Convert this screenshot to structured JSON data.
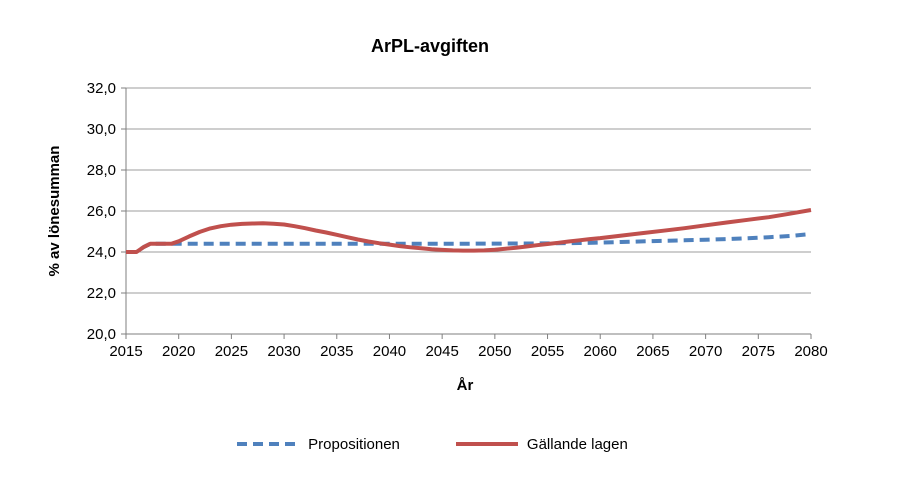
{
  "page": {
    "background": "#ffffff"
  },
  "chart_data": {
    "type": "line",
    "title": "ArPL-avgiften",
    "xlabel": "År",
    "ylabel": "% av lönesumman",
    "xlim": [
      2015,
      2080
    ],
    "ylim": [
      20,
      32
    ],
    "grid": "horizontal",
    "legend_position": "bottom",
    "decimal_separator": ",",
    "x_ticks": [
      2015,
      2020,
      2025,
      2030,
      2035,
      2040,
      2045,
      2050,
      2055,
      2060,
      2065,
      2070,
      2075,
      2080
    ],
    "x_tick_labels": [
      "2015",
      "2020",
      "2025",
      "2030",
      "2035",
      "2040",
      "2045",
      "2050",
      "2055",
      "2060",
      "2065",
      "2070",
      "2075",
      "2080"
    ],
    "y_ticks": [
      20,
      22,
      24,
      26,
      28,
      30,
      32
    ],
    "y_tick_labels": [
      "20,0",
      "22,0",
      "24,0",
      "26,0",
      "28,0",
      "30,0",
      "32,0"
    ],
    "colors": {
      "gridline": "#9c9c9c",
      "axis": "#7f7f7f",
      "text": "#000000",
      "propositionen_blue": "#4F81BD",
      "gallande_red": "#C0504D"
    },
    "series": [
      {
        "name": "Propositionen",
        "color": "#4F81BD",
        "line_style": "dashed",
        "points": [
          [
            2015,
            24.0
          ],
          [
            2016,
            24.0
          ],
          [
            2016.7,
            24.25
          ],
          [
            2017.3,
            24.4
          ],
          [
            2020,
            24.4
          ],
          [
            2025,
            24.4
          ],
          [
            2030,
            24.4
          ],
          [
            2035,
            24.4
          ],
          [
            2040,
            24.4
          ],
          [
            2045,
            24.4
          ],
          [
            2050,
            24.41
          ],
          [
            2055,
            24.42
          ],
          [
            2058,
            24.44
          ],
          [
            2060,
            24.46
          ],
          [
            2062,
            24.49
          ],
          [
            2065,
            24.53
          ],
          [
            2068,
            24.57
          ],
          [
            2070,
            24.6
          ],
          [
            2072,
            24.63
          ],
          [
            2074,
            24.67
          ],
          [
            2076,
            24.72
          ],
          [
            2078,
            24.78
          ],
          [
            2080,
            24.88
          ]
        ]
      },
      {
        "name": "Gällande lagen",
        "color": "#C0504D",
        "line_style": "solid",
        "points": [
          [
            2015,
            24.0
          ],
          [
            2016,
            24.0
          ],
          [
            2016.7,
            24.25
          ],
          [
            2017.3,
            24.4
          ],
          [
            2019.3,
            24.4
          ],
          [
            2020,
            24.52
          ],
          [
            2021,
            24.76
          ],
          [
            2022,
            24.98
          ],
          [
            2023,
            25.15
          ],
          [
            2024,
            25.26
          ],
          [
            2025,
            25.33
          ],
          [
            2026,
            25.37
          ],
          [
            2027,
            25.39
          ],
          [
            2028,
            25.4
          ],
          [
            2029,
            25.38
          ],
          [
            2030,
            25.34
          ],
          [
            2031,
            25.26
          ],
          [
            2032,
            25.16
          ],
          [
            2033,
            25.05
          ],
          [
            2034,
            24.95
          ],
          [
            2035,
            24.84
          ],
          [
            2036,
            24.72
          ],
          [
            2037,
            24.61
          ],
          [
            2038,
            24.51
          ],
          [
            2039,
            24.43
          ],
          [
            2040,
            24.36
          ],
          [
            2041,
            24.29
          ],
          [
            2042,
            24.23
          ],
          [
            2043,
            24.18
          ],
          [
            2044,
            24.13
          ],
          [
            2045,
            24.1
          ],
          [
            2046,
            24.08
          ],
          [
            2047,
            24.07
          ],
          [
            2048,
            24.07
          ],
          [
            2049,
            24.08
          ],
          [
            2050,
            24.11
          ],
          [
            2051,
            24.16
          ],
          [
            2052,
            24.21
          ],
          [
            2053,
            24.27
          ],
          [
            2054,
            24.33
          ],
          [
            2055,
            24.39
          ],
          [
            2056,
            24.45
          ],
          [
            2057,
            24.51
          ],
          [
            2058,
            24.57
          ],
          [
            2059,
            24.63
          ],
          [
            2060,
            24.68
          ],
          [
            2062,
            24.8
          ],
          [
            2064,
            24.92
          ],
          [
            2066,
            25.04
          ],
          [
            2068,
            25.16
          ],
          [
            2070,
            25.3
          ],
          [
            2072,
            25.44
          ],
          [
            2074,
            25.57
          ],
          [
            2076,
            25.7
          ],
          [
            2078,
            25.87
          ],
          [
            2080,
            26.05
          ]
        ]
      }
    ]
  }
}
